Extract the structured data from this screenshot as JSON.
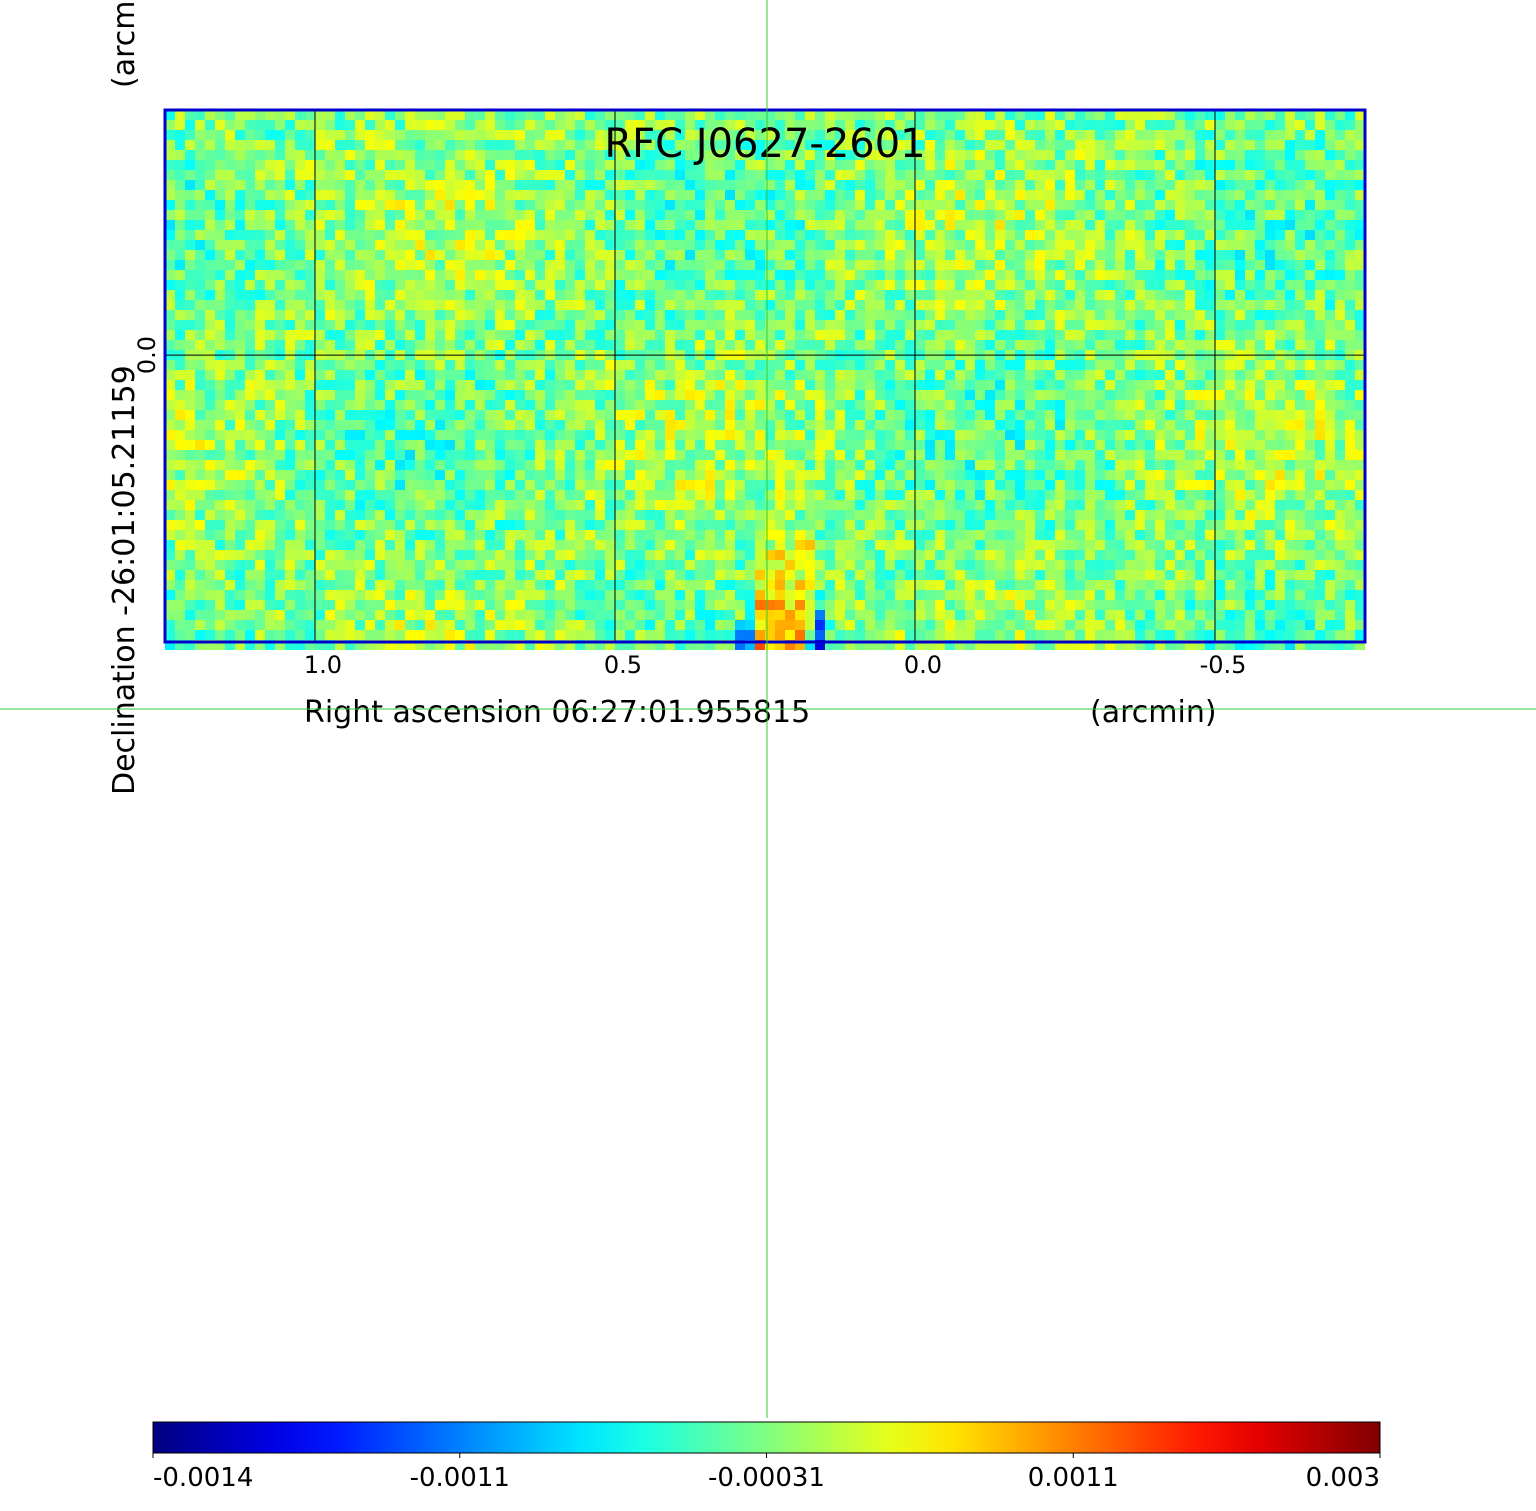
{
  "chart_data": {
    "type": "image",
    "title": "RFC J0627-2601",
    "title_color": "#0000cc",
    "frame_color": "#0000cc",
    "xlabel": "Right ascension  06:27:01.955815",
    "xunit": "(arcmin)",
    "ylabel": "Declination  -26:01:05.21159",
    "yunit": "(arcmin)",
    "xlim": [
      1.25,
      -0.75
    ],
    "ylim": [
      -0.48,
      0.41
    ],
    "xticks": [
      {
        "value": 1,
        "label": "1.0"
      },
      0.5,
      {
        "value": 0,
        "label": "0.0"
      },
      -0.5
    ],
    "yticks": [
      {
        "value": 0,
        "label": "0.0"
      }
    ],
    "grid": true,
    "colormap": "jet",
    "colorbar": {
      "ticks": [
        -0.0014,
        -0.0011,
        -0.00031,
        0.0011,
        0.003
      ]
    }
  }
}
